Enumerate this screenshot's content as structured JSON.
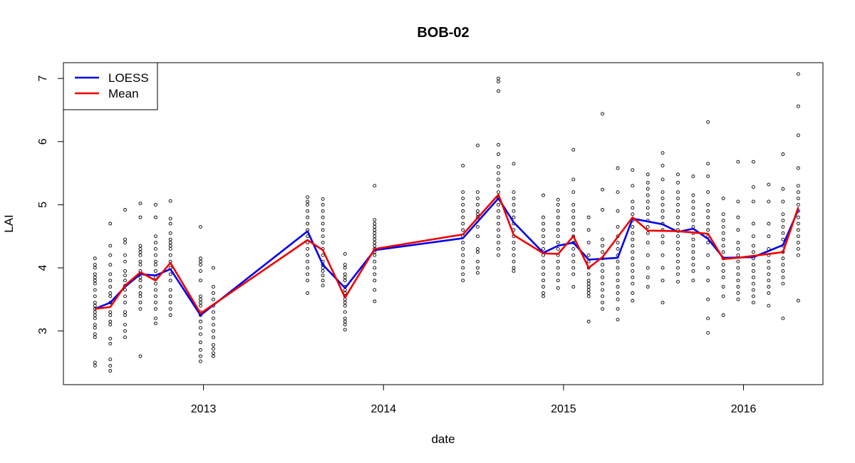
{
  "chart_data": {
    "type": "scatter",
    "title": "BOB-02",
    "xlabel": "date",
    "ylabel": "LAI",
    "xlim": [
      "2012-03-23",
      "2016-06-10"
    ],
    "ylim": [
      2.15,
      7.25
    ],
    "x_ticks": [
      {
        "date": "2013-01-01",
        "label": "2013"
      },
      {
        "date": "2014-01-01",
        "label": "2014"
      },
      {
        "date": "2015-01-01",
        "label": "2015"
      },
      {
        "date": "2016-01-01",
        "label": "2016"
      }
    ],
    "y_ticks": [
      3,
      4,
      5,
      6,
      7
    ],
    "legend": {
      "position": "top-left",
      "entries": [
        {
          "label": "LOESS",
          "color": "#0000ee"
        },
        {
          "label": "Mean",
          "color": "#ee0000"
        }
      ]
    },
    "series": [
      {
        "name": "LOESS",
        "color": "#0000ee",
        "points": [
          [
            "2012-05-26",
            3.35
          ],
          [
            "2012-06-26",
            3.45
          ],
          [
            "2012-07-26",
            3.7
          ],
          [
            "2012-08-26",
            3.9
          ],
          [
            "2012-09-26",
            3.88
          ],
          [
            "2012-10-26",
            3.98
          ],
          [
            "2012-12-26",
            3.25
          ],
          [
            "2013-07-31",
            4.58
          ],
          [
            "2013-08-31",
            4.05
          ],
          [
            "2013-10-15",
            3.68
          ],
          [
            "2013-12-14",
            4.28
          ],
          [
            "2014-06-11",
            4.47
          ],
          [
            "2014-08-22",
            5.1
          ],
          [
            "2014-09-22",
            4.72
          ],
          [
            "2014-11-21",
            4.24
          ],
          [
            "2014-12-21",
            4.35
          ],
          [
            "2015-01-21",
            4.4
          ],
          [
            "2015-02-21",
            4.13
          ],
          [
            "2015-04-21",
            4.16
          ],
          [
            "2015-05-21",
            4.78
          ],
          [
            "2015-07-21",
            4.69
          ],
          [
            "2015-08-21",
            4.57
          ],
          [
            "2015-09-21",
            4.62
          ],
          [
            "2015-10-21",
            4.46
          ],
          [
            "2015-11-21",
            4.16
          ],
          [
            "2016-01-21",
            4.17
          ],
          [
            "2016-03-21",
            4.36
          ],
          [
            "2016-04-21",
            4.92
          ]
        ]
      },
      {
        "name": "Mean",
        "color": "#ee0000",
        "points": [
          [
            "2012-05-26",
            3.35
          ],
          [
            "2012-06-26",
            3.38
          ],
          [
            "2012-07-26",
            3.72
          ],
          [
            "2012-08-26",
            3.93
          ],
          [
            "2012-09-26",
            3.8
          ],
          [
            "2012-10-26",
            4.08
          ],
          [
            "2012-12-26",
            3.28
          ],
          [
            "2013-07-31",
            4.44
          ],
          [
            "2013-08-31",
            4.28
          ],
          [
            "2013-10-15",
            3.53
          ],
          [
            "2013-12-14",
            4.3
          ],
          [
            "2014-06-11",
            4.53
          ],
          [
            "2014-08-22",
            5.16
          ],
          [
            "2014-09-22",
            4.52
          ],
          [
            "2014-11-21",
            4.23
          ],
          [
            "2014-12-21",
            4.22
          ],
          [
            "2015-01-21",
            4.5
          ],
          [
            "2015-02-21",
            4.0
          ],
          [
            "2015-03-21",
            4.17
          ],
          [
            "2015-05-21",
            4.8
          ],
          [
            "2015-06-21",
            4.59
          ],
          [
            "2015-08-21",
            4.58
          ],
          [
            "2015-10-21",
            4.54
          ],
          [
            "2015-11-21",
            4.14
          ],
          [
            "2015-12-21",
            4.16
          ],
          [
            "2016-03-21",
            4.25
          ],
          [
            "2016-04-21",
            4.96
          ]
        ]
      }
    ],
    "scatter": [
      {
        "x": "2012-05-26",
        "y": [
          2.45,
          2.5,
          2.9,
          2.95,
          3.05,
          3.1,
          3.2,
          3.25,
          3.3,
          3.35,
          3.4,
          3.45,
          3.55,
          3.65,
          3.75,
          3.8,
          3.85,
          3.9,
          4.0,
          4.05,
          4.15
        ]
      },
      {
        "x": "2012-06-26",
        "y": [
          2.37,
          2.45,
          2.55,
          2.8,
          2.88,
          3.1,
          3.15,
          3.25,
          3.3,
          3.45,
          3.55,
          3.6,
          3.7,
          3.8,
          3.9,
          4.05,
          4.2,
          4.35,
          4.7
        ]
      },
      {
        "x": "2012-07-26",
        "y": [
          2.9,
          3.0,
          3.1,
          3.25,
          3.3,
          3.45,
          3.55,
          3.65,
          3.72,
          3.8,
          3.88,
          3.95,
          4.1,
          4.2,
          4.4,
          4.45,
          4.92
        ]
      },
      {
        "x": "2012-08-26",
        "y": [
          2.6,
          3.35,
          3.45,
          3.55,
          3.6,
          3.7,
          3.8,
          3.85,
          3.95,
          4.05,
          4.1,
          4.2,
          4.25,
          4.3,
          4.35,
          4.8,
          5.02
        ]
      },
      {
        "x": "2012-09-26",
        "y": [
          3.12,
          3.2,
          3.35,
          3.45,
          3.55,
          3.65,
          3.75,
          3.85,
          3.95,
          4.05,
          4.1,
          4.2,
          4.3,
          4.4,
          4.5,
          4.8,
          5.0
        ]
      },
      {
        "x": "2012-10-26",
        "y": [
          3.25,
          3.35,
          3.45,
          3.55,
          3.65,
          3.8,
          3.9,
          4.0,
          4.1,
          4.2,
          4.3,
          4.35,
          4.4,
          4.45,
          4.55,
          4.7,
          4.78,
          5.06
        ]
      },
      {
        "x": "2012-12-26",
        "y": [
          2.52,
          2.6,
          2.7,
          2.82,
          2.95,
          3.05,
          3.15,
          3.25,
          3.3,
          3.4,
          3.45,
          3.5,
          3.55,
          3.8,
          3.95,
          4.05,
          4.1,
          4.15,
          4.65
        ]
      },
      {
        "x": "2013-01-21",
        "y": [
          2.6,
          2.65,
          2.72,
          2.78,
          2.9,
          3.0,
          3.1,
          3.2,
          3.3,
          3.4,
          3.5,
          3.6,
          3.7,
          4.0
        ]
      },
      {
        "x": "2013-07-31",
        "y": [
          3.6,
          3.8,
          3.9,
          4.0,
          4.1,
          4.2,
          4.3,
          4.4,
          4.5,
          4.6,
          4.7,
          4.8,
          4.9,
          5.0,
          5.05,
          5.12
        ]
      },
      {
        "x": "2013-08-31",
        "y": [
          3.72,
          3.8,
          3.88,
          3.95,
          4.0,
          4.05,
          4.1,
          4.2,
          4.3,
          4.4,
          4.5,
          4.6,
          4.7,
          4.8,
          4.9,
          5.0,
          5.09
        ]
      },
      {
        "x": "2013-10-15",
        "y": [
          3.02,
          3.1,
          3.15,
          3.2,
          3.3,
          3.4,
          3.45,
          3.5,
          3.55,
          3.6,
          3.65,
          3.7,
          3.8,
          3.85,
          3.9,
          4.0,
          4.05,
          4.22
        ]
      },
      {
        "x": "2013-12-14",
        "y": [
          3.47,
          3.65,
          3.8,
          3.9,
          4.0,
          4.1,
          4.2,
          4.25,
          4.3,
          4.35,
          4.4,
          4.45,
          4.5,
          4.55,
          4.6,
          4.65,
          4.7,
          4.76,
          5.3
        ]
      },
      {
        "x": "2014-06-11",
        "y": [
          3.8,
          3.9,
          4.0,
          4.1,
          4.2,
          4.3,
          4.4,
          4.5,
          4.6,
          4.7,
          4.8,
          4.9,
          5.0,
          5.1,
          5.2,
          5.62
        ]
      },
      {
        "x": "2014-07-11",
        "y": [
          3.92,
          4.0,
          4.1,
          4.25,
          4.3,
          4.5,
          4.65,
          4.8,
          4.85,
          4.9,
          5.0,
          5.1,
          5.2,
          5.94
        ]
      },
      {
        "x": "2014-08-22",
        "y": [
          4.2,
          4.3,
          4.4,
          4.5,
          4.6,
          4.7,
          4.8,
          4.9,
          5.0,
          5.1,
          5.2,
          5.3,
          5.4,
          5.5,
          5.6,
          5.8,
          5.95,
          6.8,
          6.95,
          7.0
        ]
      },
      {
        "x": "2014-09-22",
        "y": [
          3.95,
          4.0,
          4.1,
          4.2,
          4.3,
          4.4,
          4.5,
          4.6,
          4.7,
          4.8,
          4.9,
          5.0,
          5.1,
          5.2,
          5.65
        ]
      },
      {
        "x": "2014-11-21",
        "y": [
          3.55,
          3.6,
          3.7,
          3.8,
          3.9,
          4.0,
          4.1,
          4.2,
          4.3,
          4.4,
          4.5,
          4.6,
          4.7,
          4.8,
          5.15
        ]
      },
      {
        "x": "2014-12-21",
        "y": [
          3.68,
          3.8,
          3.9,
          4.0,
          4.1,
          4.2,
          4.3,
          4.4,
          4.5,
          4.6,
          4.7,
          4.8,
          4.9,
          5.0,
          5.08
        ]
      },
      {
        "x": "2015-01-21",
        "y": [
          3.7,
          3.9,
          4.0,
          4.1,
          4.2,
          4.3,
          4.4,
          4.5,
          4.6,
          4.7,
          4.8,
          4.9,
          5.0,
          5.2,
          5.4,
          5.87
        ]
      },
      {
        "x": "2015-02-21",
        "y": [
          3.15,
          3.55,
          3.6,
          3.65,
          3.7,
          3.75,
          3.8,
          3.9,
          4.0,
          4.1,
          4.2,
          4.4,
          4.6,
          4.8
        ]
      },
      {
        "x": "2015-03-21",
        "y": [
          3.35,
          3.45,
          3.55,
          3.65,
          3.75,
          3.85,
          3.95,
          4.05,
          4.15,
          4.25,
          4.35,
          4.45,
          4.92,
          5.24,
          6.44
        ]
      },
      {
        "x": "2015-04-21",
        "y": [
          3.18,
          3.35,
          3.5,
          3.6,
          3.7,
          3.8,
          3.9,
          4.0,
          4.1,
          4.2,
          4.3,
          4.4,
          4.5,
          4.65,
          4.9,
          5.2,
          5.58
        ]
      },
      {
        "x": "2015-05-21",
        "y": [
          3.48,
          3.6,
          3.75,
          3.85,
          3.95,
          4.05,
          4.15,
          4.25,
          4.35,
          4.45,
          4.55,
          4.65,
          4.75,
          4.85,
          4.95,
          5.05,
          5.3,
          5.55
        ]
      },
      {
        "x": "2015-06-21",
        "y": [
          3.7,
          3.85,
          4.0,
          4.2,
          4.4,
          4.55,
          4.65,
          4.75,
          4.85,
          4.95,
          5.05,
          5.15,
          5.25,
          5.35,
          5.48
        ]
      },
      {
        "x": "2015-07-21",
        "y": [
          3.45,
          3.8,
          4.0,
          4.2,
          4.4,
          4.5,
          4.6,
          4.7,
          4.8,
          4.9,
          5.0,
          5.1,
          5.2,
          5.4,
          5.62,
          5.82
        ]
      },
      {
        "x": "2015-08-21",
        "y": [
          3.78,
          3.9,
          4.0,
          4.1,
          4.2,
          4.3,
          4.4,
          4.5,
          4.6,
          4.7,
          4.8,
          4.9,
          5.0,
          5.1,
          5.2,
          5.35,
          5.48
        ]
      },
      {
        "x": "2015-09-21",
        "y": [
          3.8,
          3.95,
          4.05,
          4.15,
          4.25,
          4.35,
          4.45,
          4.55,
          4.65,
          4.75,
          4.85,
          4.95,
          5.05,
          5.15,
          5.45
        ]
      },
      {
        "x": "2015-10-21",
        "y": [
          2.97,
          3.2,
          3.5,
          3.8,
          4.0,
          4.2,
          4.4,
          4.5,
          4.6,
          4.7,
          4.8,
          4.9,
          5.0,
          5.2,
          5.45,
          5.65,
          6.31
        ]
      },
      {
        "x": "2015-11-21",
        "y": [
          3.25,
          3.55,
          3.7,
          3.85,
          3.95,
          4.05,
          4.15,
          4.25,
          4.35,
          4.45,
          4.55,
          4.65,
          4.75,
          4.85,
          5.1
        ]
      },
      {
        "x": "2015-12-21",
        "y": [
          3.5,
          3.6,
          3.7,
          3.8,
          3.9,
          4.0,
          4.1,
          4.2,
          4.3,
          4.4,
          4.6,
          4.8,
          5.05,
          5.68
        ]
      },
      {
        "x": "2016-01-21",
        "y": [
          3.45,
          3.55,
          3.65,
          3.75,
          3.85,
          3.95,
          4.05,
          4.15,
          4.25,
          4.35,
          4.5,
          4.7,
          5.05,
          5.28,
          5.68
        ]
      },
      {
        "x": "2016-02-21",
        "y": [
          3.4,
          3.6,
          3.7,
          3.8,
          3.9,
          4.0,
          4.1,
          4.2,
          4.3,
          4.5,
          4.7,
          5.05,
          5.32
        ]
      },
      {
        "x": "2016-03-21",
        "y": [
          3.2,
          3.75,
          3.85,
          3.95,
          4.05,
          4.15,
          4.25,
          4.35,
          4.45,
          4.55,
          4.65,
          4.75,
          4.85,
          5.05,
          5.25,
          5.8
        ]
      },
      {
        "x": "2016-04-21",
        "y": [
          3.48,
          4.2,
          4.3,
          4.4,
          4.5,
          4.6,
          4.7,
          4.8,
          4.9,
          5.0,
          5.1,
          5.2,
          5.3,
          5.58,
          6.1,
          6.56,
          7.07
        ]
      }
    ]
  }
}
